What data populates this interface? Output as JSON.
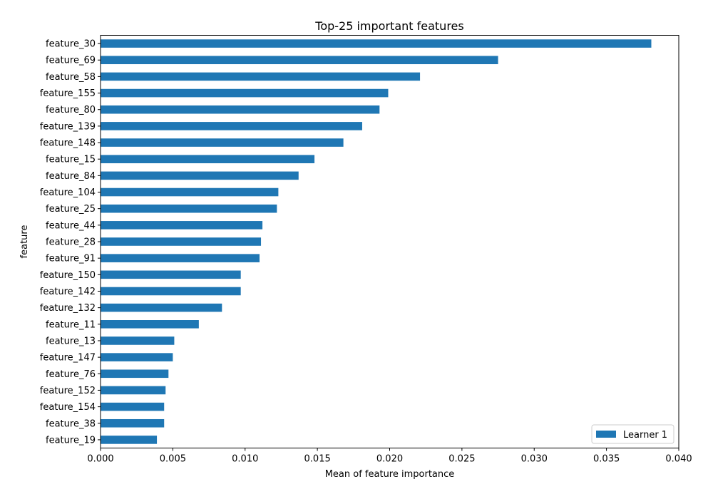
{
  "chart_data": {
    "type": "bar",
    "orientation": "horizontal",
    "title": "Top-25 important features",
    "xlabel": "Mean of feature importance",
    "ylabel": "feature",
    "xlim": [
      0.0,
      0.04
    ],
    "xticks": [
      "0.000",
      "0.005",
      "0.010",
      "0.015",
      "0.020",
      "0.025",
      "0.030",
      "0.035",
      "0.040"
    ],
    "grid": false,
    "legend_position": "lower-right",
    "categories": [
      "feature_30",
      "feature_69",
      "feature_58",
      "feature_155",
      "feature_80",
      "feature_139",
      "feature_148",
      "feature_15",
      "feature_84",
      "feature_104",
      "feature_25",
      "feature_44",
      "feature_28",
      "feature_91",
      "feature_150",
      "feature_142",
      "feature_132",
      "feature_11",
      "feature_13",
      "feature_147",
      "feature_76",
      "feature_152",
      "feature_154",
      "feature_38",
      "feature_19"
    ],
    "series": [
      {
        "name": "Learner 1",
        "color": "#1f77b4",
        "values": [
          0.0381,
          0.0275,
          0.0221,
          0.0199,
          0.0193,
          0.0181,
          0.0168,
          0.0148,
          0.0137,
          0.0123,
          0.0122,
          0.0112,
          0.0111,
          0.011,
          0.0097,
          0.0097,
          0.0084,
          0.0068,
          0.0051,
          0.005,
          0.0047,
          0.0045,
          0.0044,
          0.0044,
          0.0039
        ]
      }
    ]
  }
}
